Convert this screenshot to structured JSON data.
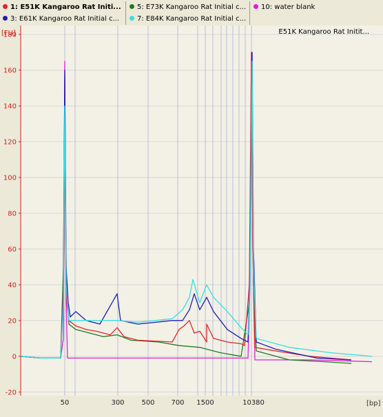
{
  "legend": {
    "items": [
      {
        "label": "1: E51K Kangaroo Rat Initi...",
        "color": "#e8212a",
        "bold": true
      },
      {
        "label": "3: E61K Kangaroo Rat Initial c...",
        "color": "#1c1cb8"
      },
      {
        "label": "5: E73K Kangaroo Rat Initial c...",
        "color": "#1e7a1e"
      },
      {
        "label": "7: E84K Kangaroo Rat Initial c...",
        "color": "#33e0e0"
      },
      {
        "label": "10: water blank",
        "color": "#e01cd8"
      }
    ]
  },
  "chart_data": {
    "type": "line",
    "title": "E51K Kangaroo Rat Initit...",
    "ylabel": "[FU]",
    "xlabel": "[bp]",
    "ylim": [
      -22,
      185
    ],
    "yticks": [
      -20,
      0,
      20,
      40,
      60,
      80,
      100,
      120,
      140,
      160,
      180
    ],
    "x_tick_labels": [
      "50",
      "300",
      "500",
      "700",
      "1500",
      "10380"
    ],
    "grid": true,
    "series": [
      {
        "name": "1: E51K Kangaroo Rat Initi...",
        "color": "#e8212a",
        "values": [
          [
            30,
            0
          ],
          [
            60,
            -1
          ],
          [
            88,
            -1
          ],
          [
            92,
            40
          ],
          [
            93,
            60
          ],
          [
            94,
            155
          ],
          [
            95,
            80
          ],
          [
            97,
            30
          ],
          [
            100,
            20
          ],
          [
            110,
            17
          ],
          [
            125,
            15
          ],
          [
            140,
            14
          ],
          [
            160,
            12
          ],
          [
            170,
            16
          ],
          [
            180,
            11
          ],
          [
            200,
            9
          ],
          [
            250,
            8
          ],
          [
            300,
            8
          ],
          [
            330,
            8
          ],
          [
            350,
            7
          ],
          [
            260,
            15
          ],
          [
            267,
            17
          ],
          [
            275,
            20
          ],
          [
            282,
            13
          ],
          [
            290,
            14
          ],
          [
            300,
            18
          ],
          [
            310,
            10
          ],
          [
            330,
            8
          ],
          [
            355,
            6
          ],
          [
            362,
            40
          ],
          [
            365,
            170
          ],
          [
            367,
            60
          ],
          [
            370,
            5
          ],
          [
            400,
            3
          ],
          [
            450,
            0
          ],
          [
            480,
            -1
          ],
          [
            510,
            -2
          ]
        ]
      },
      {
        "name": "3: E61K Kangaroo Rat Initial c...",
        "color": "#1c1cb8",
        "values": [
          [
            30,
            0
          ],
          [
            60,
            -1
          ],
          [
            88,
            -1
          ],
          [
            92,
            35
          ],
          [
            94,
            160
          ],
          [
            96,
            50
          ],
          [
            99,
            30
          ],
          [
            102,
            22
          ],
          [
            110,
            25
          ],
          [
            125,
            20
          ],
          [
            145,
            18
          ],
          [
            170,
            35
          ],
          [
            175,
            20
          ],
          [
            200,
            18
          ],
          [
            250,
            20
          ],
          [
            265,
            20
          ],
          [
            275,
            26
          ],
          [
            282,
            35
          ],
          [
            290,
            26
          ],
          [
            300,
            33
          ],
          [
            310,
            25
          ],
          [
            330,
            15
          ],
          [
            350,
            10
          ],
          [
            360,
            8
          ],
          [
            363,
            50
          ],
          [
            366,
            170
          ],
          [
            368,
            60
          ],
          [
            372,
            8
          ],
          [
            400,
            4
          ],
          [
            460,
            -1
          ],
          [
            510,
            -2
          ]
        ]
      },
      {
        "name": "5: E73K Kangaroo Rat Initial c...",
        "color": "#1e7a1e",
        "values": [
          [
            30,
            0
          ],
          [
            60,
            -1
          ],
          [
            88,
            -1
          ],
          [
            92,
            50
          ],
          [
            94,
            140
          ],
          [
            96,
            40
          ],
          [
            100,
            18
          ],
          [
            110,
            15
          ],
          [
            130,
            13
          ],
          [
            150,
            11
          ],
          [
            170,
            12
          ],
          [
            190,
            9
          ],
          [
            230,
            8
          ],
          [
            260,
            6
          ],
          [
            290,
            5
          ],
          [
            320,
            2
          ],
          [
            350,
            0
          ],
          [
            362,
            30
          ],
          [
            366,
            165
          ],
          [
            368,
            40
          ],
          [
            372,
            3
          ],
          [
            420,
            -2
          ],
          [
            470,
            -3
          ],
          [
            510,
            -4
          ]
        ]
      },
      {
        "name": "7: E84K Kangaroo Rat Initial c...",
        "color": "#33e0e0",
        "values": [
          [
            30,
            0
          ],
          [
            60,
            -1
          ],
          [
            88,
            -1
          ],
          [
            92,
            30
          ],
          [
            94,
            140
          ],
          [
            96,
            40
          ],
          [
            100,
            20
          ],
          [
            120,
            20
          ],
          [
            170,
            20
          ],
          [
            200,
            19
          ],
          [
            250,
            21
          ],
          [
            265,
            26
          ],
          [
            275,
            33
          ],
          [
            280,
            43
          ],
          [
            290,
            30
          ],
          [
            300,
            40
          ],
          [
            310,
            33
          ],
          [
            330,
            25
          ],
          [
            350,
            16
          ],
          [
            360,
            12
          ],
          [
            363,
            40
          ],
          [
            366,
            165
          ],
          [
            368,
            50
          ],
          [
            372,
            10
          ],
          [
            420,
            5
          ],
          [
            480,
            2
          ],
          [
            540,
            0
          ]
        ]
      },
      {
        "name": "10: water blank",
        "color": "#e01cd8",
        "values": [
          [
            30,
            0
          ],
          [
            60,
            -1
          ],
          [
            88,
            -1
          ],
          [
            92,
            10
          ],
          [
            94,
            165
          ],
          [
            96,
            30
          ],
          [
            98,
            -1
          ],
          [
            200,
            -1
          ],
          [
            300,
            -1
          ],
          [
            360,
            -1
          ],
          [
            363,
            40
          ],
          [
            365,
            170
          ],
          [
            367,
            60
          ],
          [
            370,
            -2
          ],
          [
            450,
            -2
          ],
          [
            540,
            -3
          ]
        ]
      }
    ]
  }
}
